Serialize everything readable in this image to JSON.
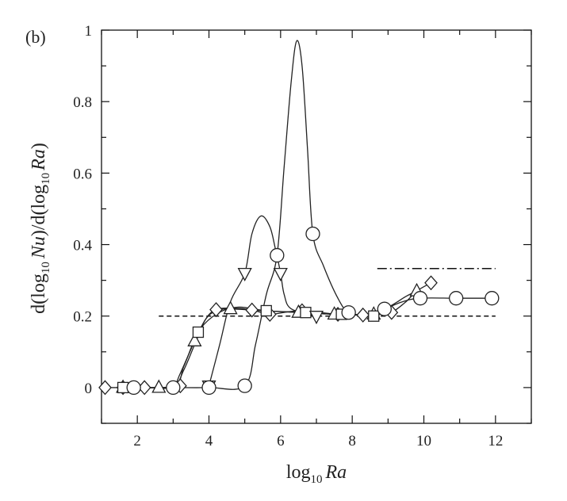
{
  "chart_data": {
    "type": "line",
    "panel_label": "(b)",
    "xlabel": {
      "prefix": "log",
      "sub": "10",
      "var": "Ra"
    },
    "ylabel": {
      "p1": "d(log",
      "s1": "10",
      "v1": "Nu",
      "p2": ")/d(log",
      "s2": "10",
      "v2": "Ra",
      "p3": ")"
    },
    "xlim": [
      1,
      13
    ],
    "ylim": [
      -0.1,
      1.0
    ],
    "x_ticks": [
      2,
      4,
      6,
      8,
      10,
      12
    ],
    "x_tick_labels": [
      "2",
      "4",
      "6",
      "8",
      "10",
      "12"
    ],
    "y_ticks": [
      0,
      0.2,
      0.4,
      0.6,
      0.8,
      1.0
    ],
    "y_tick_labels": [
      "0",
      "0.2",
      "0.4",
      "0.6",
      "0.8",
      "1"
    ],
    "grid": false,
    "legend": "none",
    "reference_lines": [
      {
        "style": "dashed",
        "y": 0.2,
        "x": [
          2.6,
          12
        ]
      },
      {
        "style": "dash-dot",
        "y": 0.333,
        "x": [
          8.7,
          12
        ]
      }
    ],
    "series": [
      {
        "marker": "diamond",
        "points": [
          [
            1.1,
            0
          ],
          [
            1.6,
            0
          ],
          [
            2.2,
            0
          ],
          [
            3.2,
            0.005
          ],
          [
            4.2,
            0.218
          ],
          [
            5.2,
            0.217
          ],
          [
            5.7,
            0.205
          ],
          [
            6.6,
            0.215
          ],
          [
            7.6,
            0.205
          ],
          [
            8.3,
            0.203
          ],
          [
            9.1,
            0.21
          ],
          [
            10.2,
            0.293
          ]
        ],
        "curve": [
          [
            1.1,
            0
          ],
          [
            2.2,
            0
          ],
          [
            3.0,
            0.002
          ],
          [
            3.3,
            0.05
          ],
          [
            3.6,
            0.12
          ],
          [
            3.9,
            0.19
          ],
          [
            4.2,
            0.218
          ],
          [
            4.7,
            0.222
          ],
          [
            5.2,
            0.217
          ],
          [
            5.7,
            0.205
          ],
          [
            6.2,
            0.212
          ],
          [
            6.6,
            0.215
          ],
          [
            7.1,
            0.21
          ],
          [
            7.6,
            0.205
          ],
          [
            8.3,
            0.203
          ],
          [
            8.8,
            0.205
          ],
          [
            9.1,
            0.21
          ],
          [
            9.5,
            0.24
          ],
          [
            9.8,
            0.27
          ],
          [
            10.2,
            0.293
          ]
        ]
      },
      {
        "marker": "triangle-up",
        "points": [
          [
            1.6,
            0
          ],
          [
            2.6,
            0
          ],
          [
            3.6,
            0.13
          ],
          [
            4.6,
            0.22
          ],
          [
            6.5,
            0.21
          ],
          [
            7.5,
            0.205
          ],
          [
            8.6,
            0.205
          ],
          [
            9.8,
            0.27
          ]
        ],
        "curve": [
          [
            1.6,
            0
          ],
          [
            2.6,
            0
          ],
          [
            3.0,
            0
          ],
          [
            3.2,
            0.04
          ],
          [
            3.6,
            0.13
          ],
          [
            3.9,
            0.19
          ],
          [
            4.2,
            0.215
          ],
          [
            4.6,
            0.22
          ],
          [
            5.5,
            0.215
          ],
          [
            6.5,
            0.21
          ],
          [
            7.5,
            0.205
          ],
          [
            8.6,
            0.205
          ],
          [
            9.1,
            0.23
          ],
          [
            9.5,
            0.255
          ],
          [
            9.8,
            0.27
          ]
        ]
      },
      {
        "marker": "square",
        "points": [
          [
            1.6,
            0
          ],
          [
            3.7,
            0.155
          ],
          [
            5.6,
            0.215
          ],
          [
            6.7,
            0.21
          ],
          [
            7.7,
            0.205
          ],
          [
            8.6,
            0.2
          ]
        ],
        "curve": [
          [
            1.6,
            0
          ],
          [
            3.0,
            0.005
          ],
          [
            3.3,
            0.06
          ],
          [
            3.7,
            0.155
          ],
          [
            4.2,
            0.205
          ],
          [
            4.8,
            0.225
          ],
          [
            5.6,
            0.215
          ],
          [
            6.7,
            0.21
          ],
          [
            7.7,
            0.205
          ],
          [
            8.6,
            0.2
          ]
        ]
      },
      {
        "marker": "triangle-down",
        "points": [
          [
            4.0,
            0.005
          ],
          [
            5.0,
            0.32
          ],
          [
            6.0,
            0.32
          ],
          [
            7.0,
            0.2
          ]
        ],
        "curve": [
          [
            4.0,
            0.005
          ],
          [
            4.3,
            0.12
          ],
          [
            4.6,
            0.24
          ],
          [
            5.0,
            0.32
          ],
          [
            5.2,
            0.43
          ],
          [
            5.45,
            0.48
          ],
          [
            5.7,
            0.45
          ],
          [
            5.85,
            0.39
          ],
          [
            6.0,
            0.32
          ],
          [
            6.1,
            0.26
          ],
          [
            6.3,
            0.22
          ],
          [
            7.0,
            0.2
          ]
        ]
      },
      {
        "marker": "circle",
        "points": [
          [
            1.9,
            0
          ],
          [
            3.0,
            0
          ],
          [
            4.0,
            0
          ],
          [
            5.0,
            0.005
          ],
          [
            5.9,
            0.37
          ],
          [
            6.9,
            0.43
          ],
          [
            7.9,
            0.21
          ],
          [
            8.9,
            0.22
          ],
          [
            9.9,
            0.25
          ],
          [
            10.9,
            0.25
          ],
          [
            11.9,
            0.25
          ]
        ],
        "curve": [
          [
            1.9,
            0
          ],
          [
            3.0,
            0
          ],
          [
            4.0,
            0
          ],
          [
            5.0,
            0.005
          ],
          [
            5.3,
            0.12
          ],
          [
            5.6,
            0.26
          ],
          [
            5.9,
            0.37
          ],
          [
            6.1,
            0.62
          ],
          [
            6.3,
            0.86
          ],
          [
            6.45,
            0.97
          ],
          [
            6.6,
            0.9
          ],
          [
            6.75,
            0.67
          ],
          [
            6.9,
            0.43
          ],
          [
            7.2,
            0.34
          ],
          [
            7.6,
            0.25
          ],
          [
            7.9,
            0.21
          ],
          [
            8.4,
            0.205
          ],
          [
            8.9,
            0.22
          ],
          [
            9.4,
            0.24
          ],
          [
            9.9,
            0.25
          ],
          [
            10.9,
            0.25
          ],
          [
            11.9,
            0.25
          ]
        ]
      }
    ]
  }
}
